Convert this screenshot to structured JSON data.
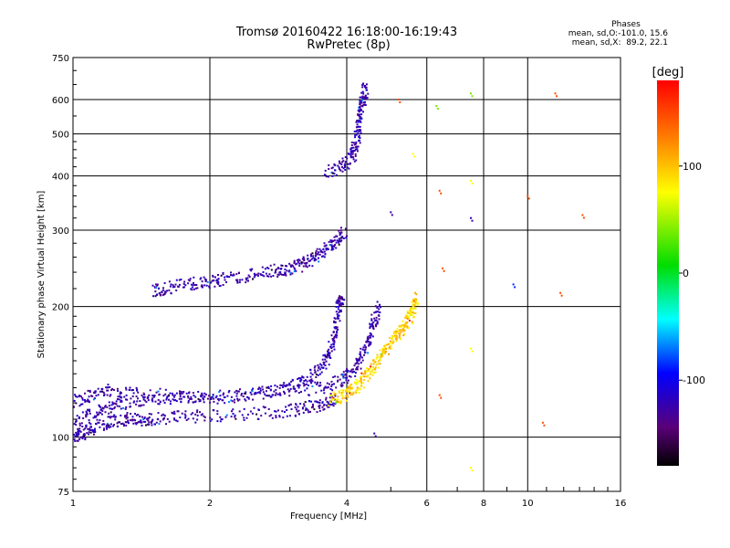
{
  "chart_data": {
    "type": "scatter",
    "title": "Tromsø 20160422 16:18:00-16:19:43",
    "subtitle": "RwPretec (8p)",
    "xlabel": "Frequency [MHz]",
    "ylabel": "Stationary phase Virtual Height [km]",
    "x_scale": "log",
    "y_scale": "log",
    "xlim": [
      1,
      16
    ],
    "ylim": [
      75,
      750
    ],
    "x_ticks": [
      1,
      2,
      4,
      6,
      8,
      10,
      16
    ],
    "y_ticks": [
      75,
      100,
      200,
      300,
      400,
      500,
      600,
      750
    ],
    "grid": true,
    "phases_box": {
      "title": "Phases",
      "line1": "mean, sd,O:-101.0, 15.6",
      "line2": "mean, sd,X:  89.2, 22.1"
    },
    "colorbar": {
      "unit": "[deg]",
      "ticks": [
        100,
        0,
        -100
      ],
      "range": [
        -180,
        180
      ]
    },
    "traces": [
      {
        "name": "",
        "phase": -100,
        "points": [
          [
            1.0,
            100
          ],
          [
            1.05,
            102
          ],
          [
            1.1,
            105
          ],
          [
            1.2,
            108
          ],
          [
            1.3,
            110
          ],
          [
            1.4,
            110
          ],
          [
            1.5,
            110
          ],
          [
            1.7,
            111
          ],
          [
            2.0,
            112
          ],
          [
            2.5,
            113
          ],
          [
            3.0,
            115
          ],
          [
            3.3,
            117
          ],
          [
            3.6,
            120
          ],
          [
            3.8,
            123
          ]
        ]
      },
      {
        "name": "",
        "phase": -100,
        "points": [
          [
            1.0,
            108
          ],
          [
            1.1,
            113
          ],
          [
            1.2,
            117
          ],
          [
            1.3,
            120
          ],
          [
            1.5,
            122
          ],
          [
            1.8,
            123
          ],
          [
            2.2,
            124
          ],
          [
            2.7,
            127
          ],
          [
            3.1,
            132
          ],
          [
            3.4,
            140
          ],
          [
            3.6,
            150
          ],
          [
            3.7,
            162
          ],
          [
            3.8,
            180
          ],
          [
            3.85,
            200
          ],
          [
            3.9,
            215
          ]
        ]
      },
      {
        "name": "",
        "phase": -100,
        "points": [
          [
            1.0,
            120
          ],
          [
            1.1,
            125
          ],
          [
            1.2,
            128
          ],
          [
            1.4,
            126
          ],
          [
            1.7,
            124
          ],
          [
            2.0,
            124
          ],
          [
            2.5,
            126
          ],
          [
            3.0,
            128
          ],
          [
            3.5,
            130
          ],
          [
            3.9,
            135
          ],
          [
            4.1,
            142
          ],
          [
            4.3,
            152
          ],
          [
            4.5,
            168
          ],
          [
            4.6,
            185
          ],
          [
            4.7,
            200
          ]
        ]
      },
      {
        "name": "",
        "phase": -100,
        "points": [
          [
            1.5,
            217
          ],
          [
            1.6,
            220
          ],
          [
            1.8,
            225
          ],
          [
            2.0,
            228
          ],
          [
            2.2,
            232
          ],
          [
            2.5,
            237
          ],
          [
            2.8,
            242
          ],
          [
            3.0,
            245
          ],
          [
            3.2,
            250
          ],
          [
            3.4,
            260
          ],
          [
            3.6,
            272
          ],
          [
            3.8,
            285
          ],
          [
            3.95,
            295
          ]
        ]
      },
      {
        "name": "",
        "phase": -100,
        "points": [
          [
            3.6,
            408
          ],
          [
            3.9,
            420
          ],
          [
            4.1,
            440
          ],
          [
            4.2,
            470
          ],
          [
            4.25,
            520
          ],
          [
            4.3,
            560
          ],
          [
            4.35,
            600
          ],
          [
            4.4,
            640
          ]
        ]
      },
      {
        "name": "",
        "phase": 110,
        "points": [
          [
            3.7,
            122
          ],
          [
            3.9,
            124
          ],
          [
            4.1,
            128
          ],
          [
            4.3,
            134
          ],
          [
            4.5,
            142
          ],
          [
            4.7,
            152
          ],
          [
            4.9,
            162
          ],
          [
            5.1,
            170
          ],
          [
            5.3,
            178
          ],
          [
            5.5,
            188
          ],
          [
            5.6,
            200
          ],
          [
            5.7,
            210
          ]
        ]
      }
    ],
    "scattered_points": [
      {
        "x": 5.6,
        "y": 450,
        "phase": 100
      },
      {
        "x": 5.2,
        "y": 600,
        "phase": 150
      },
      {
        "x": 6.4,
        "y": 370,
        "phase": 150
      },
      {
        "x": 6.5,
        "y": 245,
        "phase": 150
      },
      {
        "x": 6.3,
        "y": 580,
        "phase": 60
      },
      {
        "x": 7.5,
        "y": 620,
        "phase": 60
      },
      {
        "x": 7.5,
        "y": 390,
        "phase": 100
      },
      {
        "x": 7.5,
        "y": 320,
        "phase": -100
      },
      {
        "x": 7.5,
        "y": 85,
        "phase": 100
      },
      {
        "x": 6.4,
        "y": 125,
        "phase": 150
      },
      {
        "x": 10.0,
        "y": 360,
        "phase": 150
      },
      {
        "x": 10.8,
        "y": 108,
        "phase": 150
      },
      {
        "x": 11.8,
        "y": 215,
        "phase": 150
      },
      {
        "x": 13.2,
        "y": 325,
        "phase": 150
      },
      {
        "x": 11.5,
        "y": 620,
        "phase": 150
      },
      {
        "x": 9.3,
        "y": 225,
        "phase": -60
      },
      {
        "x": 5.0,
        "y": 330,
        "phase": -100
      },
      {
        "x": 4.6,
        "y": 102,
        "phase": -100
      },
      {
        "x": 7.5,
        "y": 160,
        "phase": 100
      }
    ]
  }
}
